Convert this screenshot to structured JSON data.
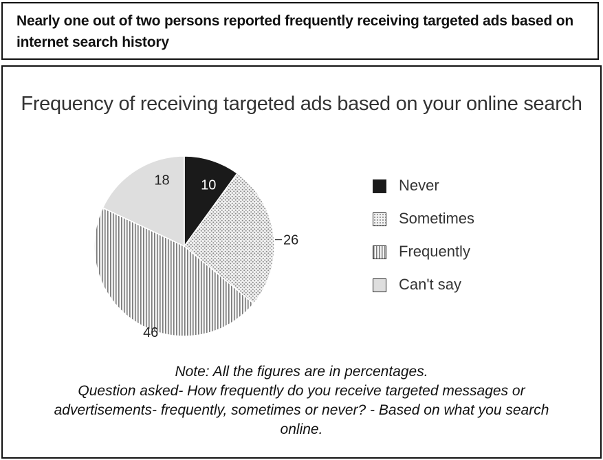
{
  "headline": "Nearly one out of two persons reported frequently receiving targeted ads based on internet search history",
  "chart_data": {
    "type": "pie",
    "title": "Frequency of receiving targeted ads based on your online search",
    "unit": "percent",
    "slices": [
      {
        "label": "Never",
        "value": 10,
        "data_label": "10",
        "pattern": "solid-black"
      },
      {
        "label": "Sometimes",
        "value": 26,
        "data_label": "26",
        "pattern": "dots"
      },
      {
        "label": "Frequently",
        "value": 46,
        "data_label": "46",
        "pattern": "vertical-stripes"
      },
      {
        "label": "Can't say",
        "value": 18,
        "data_label": "18",
        "pattern": "light-gray"
      }
    ],
    "legend_position": "right",
    "colors": {
      "never": "#1a1a1a",
      "can_say": "#dedede",
      "stroke": "#ffffff"
    }
  },
  "note_lines": [
    "Note: All the figures are in percentages.",
    "Question asked- How frequently do you receive targeted messages or",
    "advertisements- frequently, sometimes or never? - Based on what you search",
    "online."
  ]
}
